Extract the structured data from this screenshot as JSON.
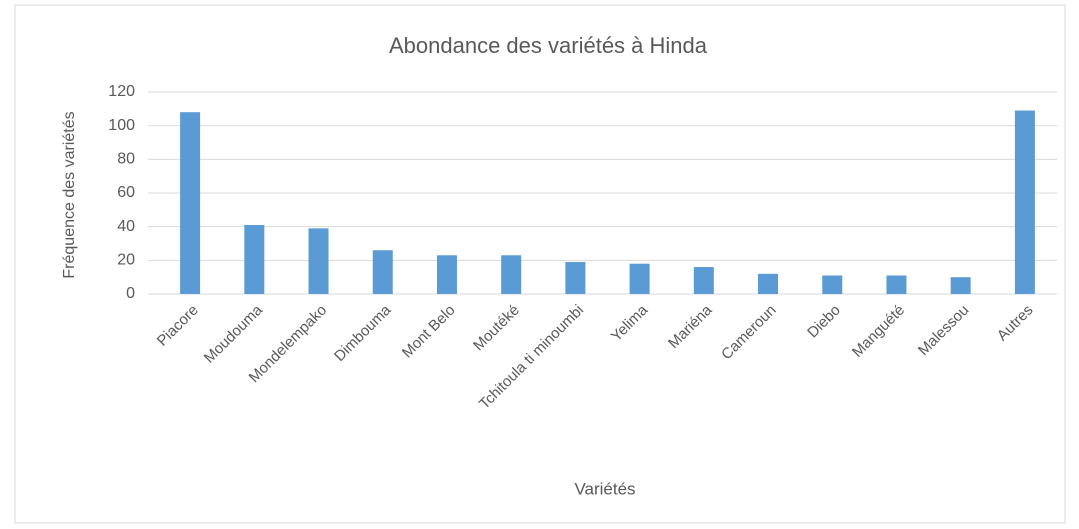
{
  "chart_data": {
    "type": "bar",
    "title": "Abondance des variétés à Hinda",
    "x_label": "Variétés",
    "y_label": "Fréquence des variétés",
    "categories": [
      "Piacore",
      "Moudouma",
      "Mondelempako",
      "Dimbouma",
      "Mont Belo",
      "Moutéké",
      "Tchitoula ti minoumbi",
      "Yelima",
      "Mariéna",
      "Cameroun",
      "Diebo",
      "Manguété",
      "Malessou",
      "Autres"
    ],
    "values": [
      108,
      41,
      39,
      26,
      23,
      23,
      19,
      18,
      16,
      12,
      11,
      11,
      10,
      109
    ],
    "color": "#5b9bd5",
    "ylim": [
      0,
      120
    ],
    "yticks": [
      0,
      20,
      40,
      60,
      80,
      100,
      120
    ],
    "grid": true
  }
}
